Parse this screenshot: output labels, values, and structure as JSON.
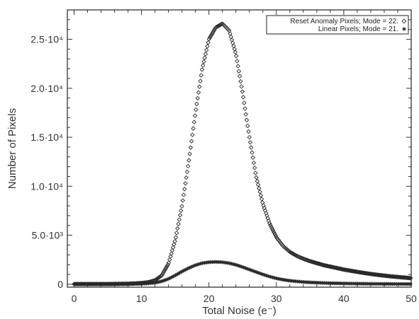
{
  "chart_data": {
    "type": "scatter",
    "xlabel": "Total Noise (e⁻)",
    "ylabel": "Number of Pixels",
    "xlim": [
      -1,
      50
    ],
    "ylim": [
      -300,
      28000
    ],
    "x_ticks": [
      {
        "value": 0,
        "label": "0"
      },
      {
        "value": 10,
        "label": "10"
      },
      {
        "value": 20,
        "label": "20"
      },
      {
        "value": 30,
        "label": "30"
      },
      {
        "value": 40,
        "label": "40"
      },
      {
        "value": 50,
        "label": "50"
      }
    ],
    "y_ticks": [
      {
        "value": 0,
        "label": "0"
      },
      {
        "value": 5000,
        "label": "5.0·10³"
      },
      {
        "value": 10000,
        "label": "1.0·10⁴"
      },
      {
        "value": 15000,
        "label": "1.5·10⁴"
      },
      {
        "value": 20000,
        "label": "2.0·10⁴"
      },
      {
        "value": 25000,
        "label": "2.5·10⁴"
      }
    ],
    "legend_position": "top-right",
    "series": [
      {
        "name": "Reset Anomaly Pixels; Mode = 22.",
        "marker": "diamond",
        "x": [
          0,
          1,
          2,
          3,
          4,
          5,
          6,
          7,
          8,
          9,
          10,
          11,
          12,
          13,
          14,
          15,
          16,
          17,
          18,
          19,
          20,
          21,
          22,
          23,
          24,
          25,
          26,
          27,
          28,
          29,
          30,
          31,
          32,
          33,
          34,
          35,
          36,
          37,
          38,
          39,
          40,
          41,
          42,
          43,
          44,
          45,
          46,
          47,
          48,
          49,
          50
        ],
        "values": [
          20,
          20,
          20,
          20,
          20,
          20,
          30,
          40,
          50,
          80,
          120,
          200,
          400,
          900,
          2100,
          4500,
          8000,
          12500,
          17500,
          22000,
          25000,
          26200,
          26600,
          25900,
          23500,
          19500,
          15000,
          11000,
          8200,
          6200,
          4800,
          3900,
          3300,
          2900,
          2600,
          2350,
          2150,
          1950,
          1800,
          1650,
          1500,
          1380,
          1260,
          1150,
          1050,
          960,
          880,
          800,
          740,
          680,
          620
        ]
      },
      {
        "name": "Linear Pixels; Mode = 21.",
        "marker": "asterisk",
        "x": [
          0,
          1,
          2,
          3,
          4,
          5,
          6,
          7,
          8,
          9,
          10,
          11,
          12,
          13,
          14,
          15,
          16,
          17,
          18,
          19,
          20,
          21,
          22,
          23,
          24,
          25,
          26,
          27,
          28,
          29,
          30,
          31,
          32,
          33,
          34,
          35,
          36,
          37,
          38,
          39,
          40,
          41,
          42,
          43,
          44,
          45,
          46,
          47,
          48,
          49,
          50
        ],
        "values": [
          10,
          10,
          10,
          10,
          10,
          10,
          15,
          20,
          25,
          35,
          50,
          80,
          150,
          300,
          550,
          900,
          1300,
          1650,
          1950,
          2150,
          2250,
          2280,
          2250,
          2150,
          1980,
          1750,
          1500,
          1250,
          1000,
          780,
          600,
          460,
          360,
          290,
          230,
          190,
          160,
          130,
          110,
          95,
          80,
          70,
          60,
          52,
          45,
          40,
          35,
          30,
          26,
          22,
          20
        ]
      }
    ]
  }
}
